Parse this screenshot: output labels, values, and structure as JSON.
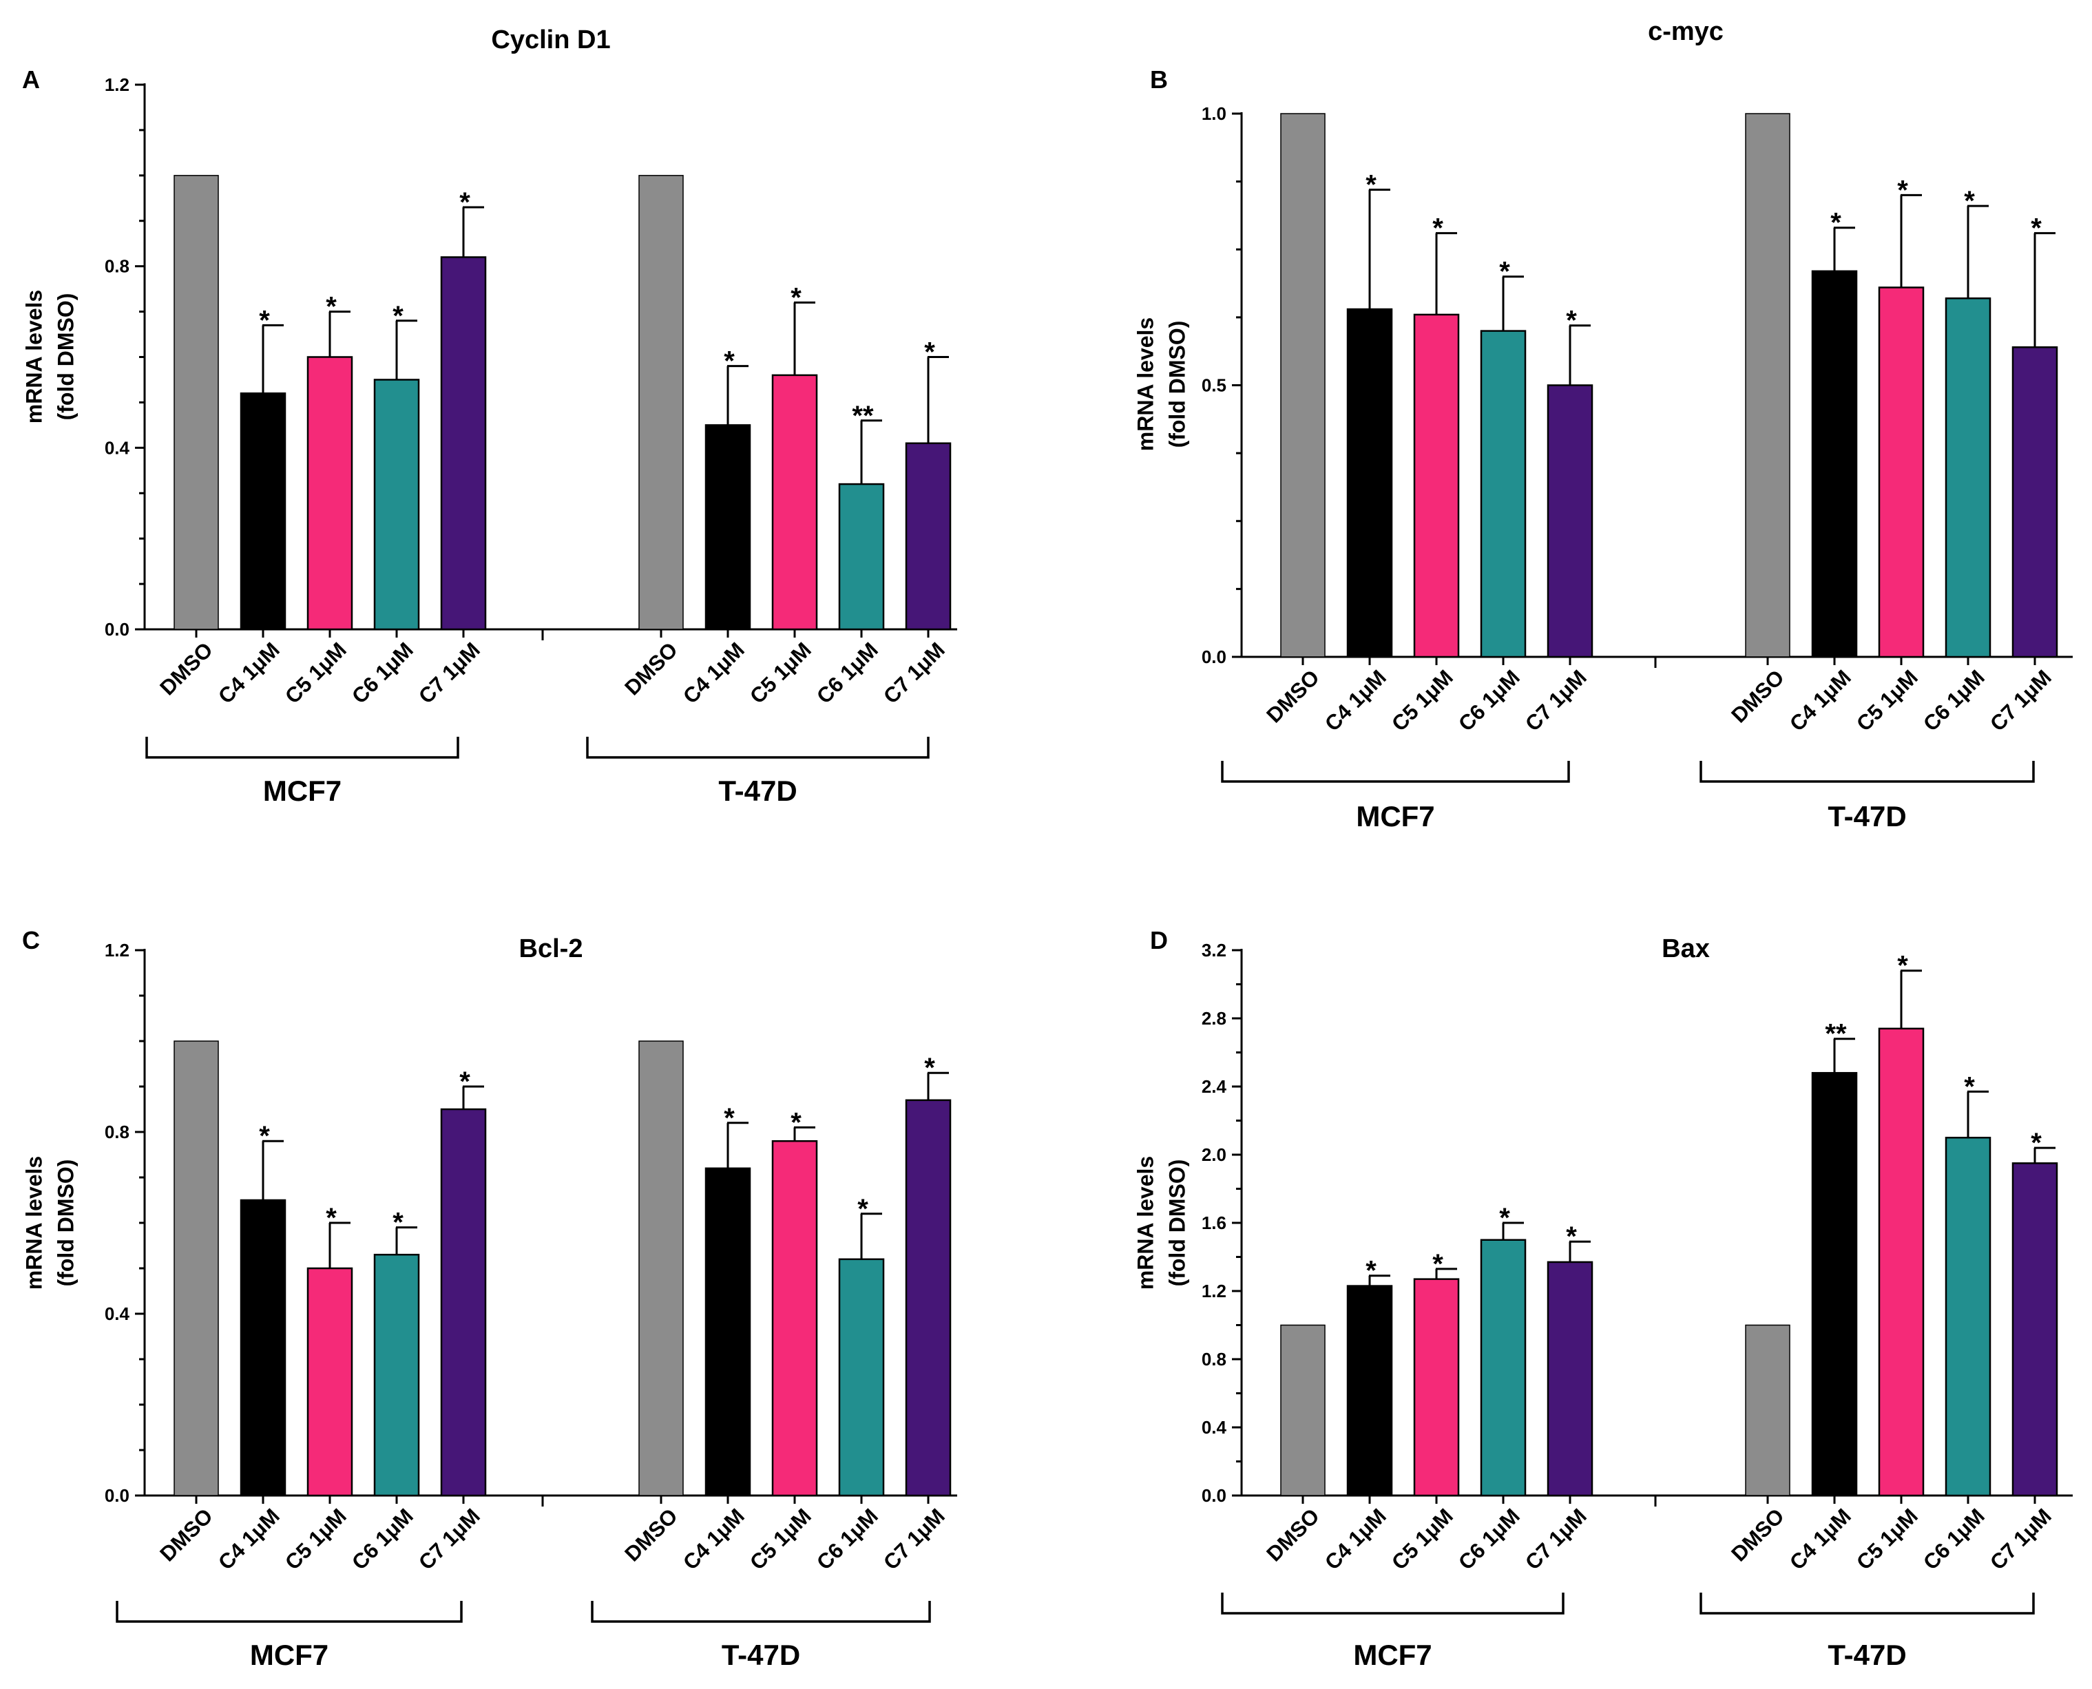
{
  "colors": {
    "DMSO": "#8c8c8c",
    "C4": "#000000",
    "C5": "#f52a78",
    "C6": "#228f8f",
    "C7": "#461677"
  },
  "chart_data": [
    {
      "panel": "A",
      "type": "bar",
      "title": "Cyclin D1",
      "ylabel": "mRNA levels (fold DMSO)",
      "ylabel_lines": [
        "mRNA levels",
        "(fold DMSO)"
      ],
      "ylim": [
        0,
        1.2
      ],
      "yticks": [
        "0.0",
        "0.4",
        "0.8",
        "1.2"
      ],
      "categories": [
        "DMSO",
        "C4 1μM",
        "C5 1μM",
        "C6 1μM",
        "C7 1μM"
      ],
      "groups": [
        {
          "name": "MCF7",
          "values": [
            1.0,
            0.52,
            0.6,
            0.55,
            0.82
          ],
          "errors": [
            0,
            0.15,
            0.1,
            0.13,
            0.11
          ],
          "significance": [
            "",
            "*",
            "*",
            "*",
            "*"
          ]
        },
        {
          "name": "T-47D",
          "values": [
            1.0,
            0.45,
            0.56,
            0.32,
            0.41
          ],
          "errors": [
            0,
            0.13,
            0.16,
            0.14,
            0.19
          ],
          "significance": [
            "",
            "*",
            "*",
            "**",
            "*"
          ]
        }
      ]
    },
    {
      "panel": "B",
      "type": "bar",
      "title": "c-myc",
      "ylabel": "mRNA levels (fold DMSO)",
      "ylabel_lines": [
        "mRNA levels",
        "(fold DMSO)"
      ],
      "ylim": [
        0,
        1.0
      ],
      "yticks": [
        "0.0",
        "0.5",
        "1.0"
      ],
      "categories": [
        "DMSO",
        "C4 1μM",
        "C5 1μM",
        "C6 1μM",
        "C7 1μM"
      ],
      "groups": [
        {
          "name": "MCF7",
          "values": [
            1.0,
            0.64,
            0.63,
            0.6,
            0.5
          ],
          "errors": [
            0,
            0.22,
            0.15,
            0.1,
            0.11
          ],
          "significance": [
            "",
            "*",
            "*",
            "*",
            "*"
          ]
        },
        {
          "name": "T-47D",
          "values": [
            1.0,
            0.71,
            0.68,
            0.66,
            0.57
          ],
          "errors": [
            0,
            0.08,
            0.17,
            0.17,
            0.21
          ],
          "significance": [
            "",
            "*",
            "*",
            "*",
            "*"
          ]
        }
      ]
    },
    {
      "panel": "C",
      "type": "bar",
      "title": "Bcl-2",
      "ylabel": "mRNA levels (fold DMSO)",
      "ylabel_lines": [
        "mRNA levels",
        "(fold DMSO)"
      ],
      "ylim": [
        0,
        1.2
      ],
      "yticks": [
        "0.0",
        "0.4",
        "0.8",
        "1.2"
      ],
      "categories": [
        "DMSO",
        "C4 1μM",
        "C5 1μM",
        "C6 1μM",
        "C7 1μM"
      ],
      "groups": [
        {
          "name": "MCF7",
          "values": [
            1.0,
            0.65,
            0.5,
            0.53,
            0.85
          ],
          "errors": [
            0,
            0.13,
            0.1,
            0.06,
            0.05
          ],
          "significance": [
            "",
            "*",
            "*",
            "*",
            "*"
          ]
        },
        {
          "name": "T-47D",
          "values": [
            1.0,
            0.72,
            0.78,
            0.52,
            0.87
          ],
          "errors": [
            0,
            0.1,
            0.03,
            0.1,
            0.06
          ],
          "significance": [
            "",
            "*",
            "*",
            "*",
            "*"
          ]
        }
      ]
    },
    {
      "panel": "D",
      "type": "bar",
      "title": "Bax",
      "ylabel": "mRNA levels (fold DMSO)",
      "ylabel_lines": [
        "mRNA levels",
        "(fold DMSO)"
      ],
      "ylim": [
        0,
        3.2
      ],
      "yticks": [
        "0.0",
        "0.4",
        "0.8",
        "1.2",
        "1.6",
        "2.0",
        "2.4",
        "2.8",
        "3.2"
      ],
      "categories": [
        "DMSO",
        "C4 1μM",
        "C5 1μM",
        "C6 1μM",
        "C7 1μM"
      ],
      "groups": [
        {
          "name": "MCF7",
          "values": [
            1.0,
            1.23,
            1.27,
            1.5,
            1.37
          ],
          "errors": [
            0,
            0.06,
            0.06,
            0.1,
            0.12
          ],
          "significance": [
            "",
            "*",
            "*",
            "*",
            "*"
          ]
        },
        {
          "name": "T-47D",
          "values": [
            1.0,
            2.48,
            2.74,
            2.1,
            1.95
          ],
          "errors": [
            0,
            0.2,
            0.34,
            0.27,
            0.09
          ],
          "significance": [
            "",
            "**",
            "*",
            "*",
            "*"
          ]
        }
      ]
    }
  ]
}
